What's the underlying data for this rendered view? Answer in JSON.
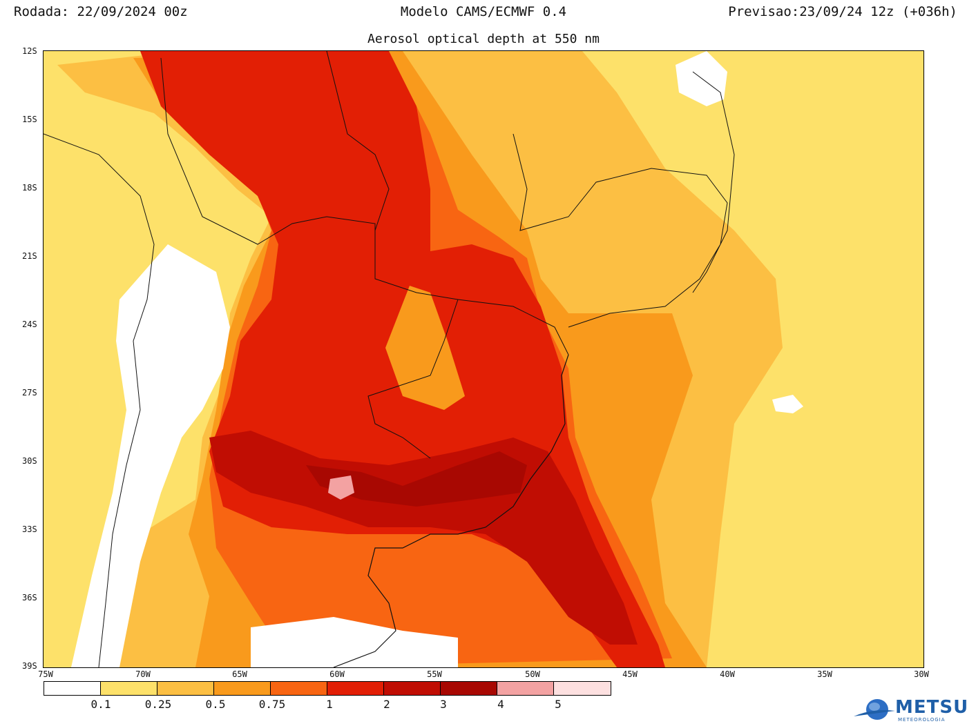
{
  "header": {
    "left": "Rodada: 22/09/2024 00z",
    "center": "Modelo CAMS/ECMWF 0.4",
    "right": "Previsao:23/09/24 12z (+036h)",
    "subtitle": "Aerosol optical depth at 550 nm"
  },
  "axes": {
    "lat_labels": [
      "12S",
      "15S",
      "18S",
      "21S",
      "24S",
      "27S",
      "30S",
      "33S",
      "36S",
      "39S"
    ],
    "lon_labels": [
      "75W",
      "70W",
      "65W",
      "60W",
      "55W",
      "50W",
      "45W",
      "40W",
      "35W",
      "30W"
    ]
  },
  "colorbar": {
    "colors": [
      "#ffffff",
      "#fde16a",
      "#fcbf43",
      "#f99a1c",
      "#f86512",
      "#e21f05",
      "#c00d03",
      "#a80802",
      "#f3a2a2",
      "#fde0e0"
    ],
    "labels": [
      "0.1",
      "0.25",
      "0.5",
      "0.75",
      "1",
      "2",
      "3",
      "4",
      "5"
    ]
  },
  "logo": {
    "name": "METSUL",
    "sub": "METEOROLOGIA",
    "icon": "globe-icon"
  }
}
